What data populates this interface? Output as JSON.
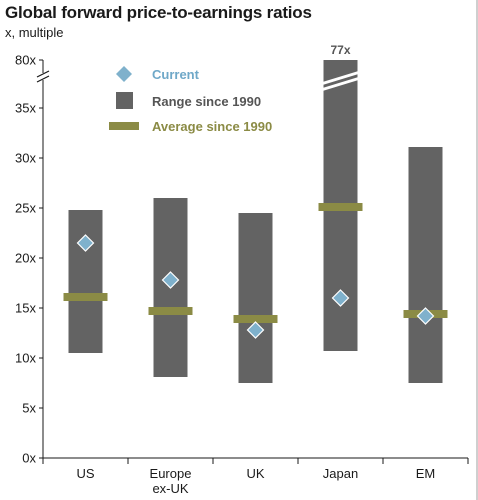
{
  "chart_data": {
    "type": "range-bar",
    "title": "Global forward price-to-earnings ratios",
    "subtitle": "x, multiple",
    "categories": [
      "US",
      "Europe\nex-UK",
      "UK",
      "Japan",
      "EM"
    ],
    "y_ticks": [
      "0x",
      "5x",
      "10x",
      "15x",
      "20x",
      "25x",
      "30x",
      "35x",
      "80x"
    ],
    "axis_break": true,
    "ylim": [
      0,
      80
    ],
    "series": [
      {
        "name": "Current",
        "values": [
          21.5,
          17.8,
          12.8,
          16.0,
          14.2
        ]
      },
      {
        "name": "Range since 1990",
        "low": [
          10.5,
          8.1,
          7.5,
          10.7,
          7.5
        ],
        "high": [
          24.8,
          26.0,
          24.5,
          80.0,
          31.1
        ]
      },
      {
        "name": "Average since 1990",
        "values": [
          16.1,
          14.7,
          13.9,
          25.1,
          14.4
        ]
      }
    ],
    "annotations": [
      {
        "category": "Japan",
        "text": "77x"
      }
    ],
    "legend_position": "top-left",
    "colors": {
      "current": "#7fb1cc",
      "range": "#636363",
      "average": "#8b8b45",
      "current_legend_text": "#6fa8c8",
      "average_legend_text": "#8b8b45",
      "range_legend_text": "#555555"
    }
  }
}
